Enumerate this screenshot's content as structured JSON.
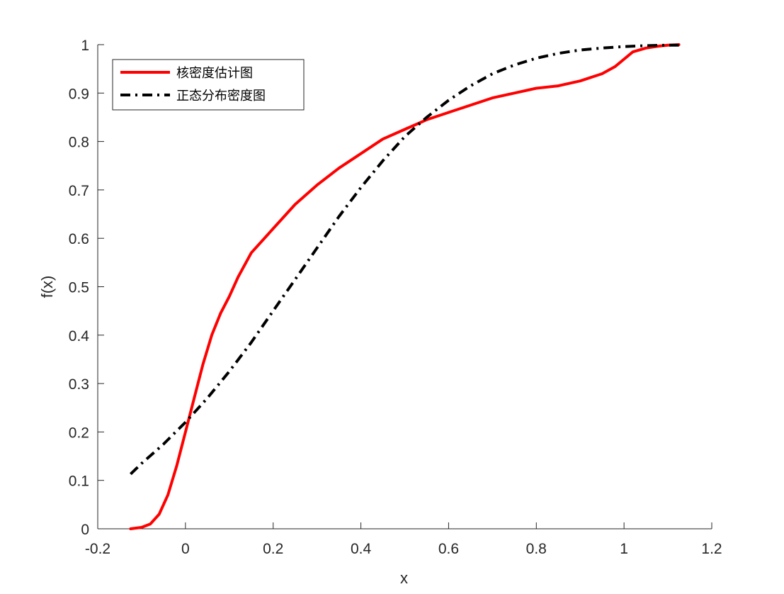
{
  "chart_data": {
    "type": "line",
    "title": "",
    "xlabel": "x",
    "ylabel": "f(x)",
    "xlim": [
      -0.2,
      1.2
    ],
    "ylim": [
      0,
      1
    ],
    "xticks": [
      -0.2,
      0,
      0.2,
      0.4,
      0.6,
      0.8,
      1,
      1.2
    ],
    "xtick_labels": [
      "-0.2",
      "0",
      "0.2",
      "0.4",
      "0.6",
      "0.8",
      "1",
      "1.2"
    ],
    "yticks": [
      0,
      0.1,
      0.2,
      0.3,
      0.4,
      0.5,
      0.6,
      0.7,
      0.8,
      0.9,
      1
    ],
    "ytick_labels": [
      "0",
      "0.1",
      "0.2",
      "0.3",
      "0.4",
      "0.5",
      "0.6",
      "0.7",
      "0.8",
      "0.9",
      "1"
    ],
    "grid": false,
    "box": false,
    "legend": {
      "placement": "top-left"
    },
    "series": [
      {
        "name": "核密度估计图",
        "color": "#ff0000",
        "style": "solid",
        "x": [
          -0.125,
          -0.1,
          -0.08,
          -0.06,
          -0.04,
          -0.02,
          0,
          0.02,
          0.04,
          0.06,
          0.08,
          0.1,
          0.12,
          0.15,
          0.2,
          0.25,
          0.3,
          0.35,
          0.4,
          0.45,
          0.5,
          0.55,
          0.6,
          0.65,
          0.7,
          0.75,
          0.8,
          0.85,
          0.9,
          0.95,
          0.98,
          1.0,
          1.02,
          1.05,
          1.08,
          1.1,
          1.125
        ],
        "y": [
          0.0,
          0.003,
          0.01,
          0.03,
          0.07,
          0.13,
          0.2,
          0.27,
          0.34,
          0.4,
          0.445,
          0.48,
          0.52,
          0.57,
          0.62,
          0.67,
          0.71,
          0.745,
          0.775,
          0.805,
          0.825,
          0.845,
          0.86,
          0.875,
          0.89,
          0.9,
          0.91,
          0.915,
          0.925,
          0.94,
          0.955,
          0.97,
          0.985,
          0.993,
          0.997,
          0.999,
          1.0
        ]
      },
      {
        "name": "正态分布密度图",
        "color": "#000000",
        "style": "dashdot",
        "x": [
          -0.125,
          -0.1,
          -0.05,
          0,
          0.05,
          0.1,
          0.15,
          0.2,
          0.25,
          0.3,
          0.35,
          0.4,
          0.45,
          0.5,
          0.55,
          0.6,
          0.65,
          0.7,
          0.75,
          0.8,
          0.85,
          0.9,
          0.95,
          1.0,
          1.05,
          1.1,
          1.125
        ],
        "y": [
          0.113,
          0.135,
          0.175,
          0.22,
          0.27,
          0.325,
          0.385,
          0.45,
          0.515,
          0.58,
          0.645,
          0.705,
          0.76,
          0.81,
          0.85,
          0.885,
          0.915,
          0.94,
          0.958,
          0.972,
          0.982,
          0.989,
          0.993,
          0.996,
          0.998,
          0.999,
          0.999
        ]
      }
    ]
  }
}
